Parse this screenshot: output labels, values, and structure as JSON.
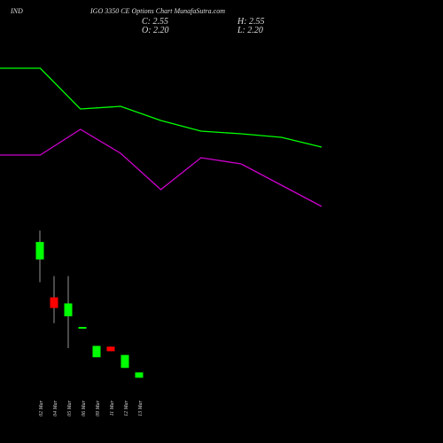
{
  "chart_data": {
    "type": "candlestick",
    "title": "IND",
    "subtitle": "IGO 3350 CE Options Chart MunafaSutra.com",
    "ohlc_labels": {
      "close": "C: 2.55",
      "high": "H: 2.55",
      "open": "O: 2.20",
      "low": "L: 2.20"
    },
    "categories": [
      "02 Mar",
      "04 Mar",
      "05 Mar",
      "06 Mar",
      "09 Mar",
      "11 Mar",
      "12 Mar",
      "13 Mar"
    ],
    "open": [
      10.0,
      7.5,
      6.25,
      5.45,
      3.55,
      4.25,
      2.85,
      2.2
    ],
    "high": [
      11.9,
      8.9,
      8.9,
      5.55,
      4.3,
      4.25,
      3.7,
      2.55
    ],
    "low": [
      8.5,
      5.8,
      4.15,
      5.45,
      3.55,
      3.95,
      2.85,
      2.2
    ],
    "close": [
      11.15,
      6.8,
      7.1,
      5.55,
      4.3,
      3.95,
      3.7,
      2.55
    ],
    "up_color": "#00ff00",
    "down_color": "#ff0000",
    "ylim": [
      0,
      12.5
    ],
    "lines": {
      "xlim": [
        0,
        8
      ],
      "ylim": [
        0,
        100
      ],
      "x": [
        0,
        1,
        2,
        3,
        4,
        5,
        6,
        7,
        8
      ],
      "series": [
        {
          "color": "#00ff00",
          "values": [
            86.5,
            86.5,
            63.5,
            65,
            57,
            51,
            49.5,
            47.5,
            42
          ]
        },
        {
          "color": "#cc00cc",
          "values": [
            37.5,
            37.5,
            52,
            38.5,
            18,
            36,
            32.5,
            20.5,
            8.5
          ]
        }
      ]
    }
  }
}
